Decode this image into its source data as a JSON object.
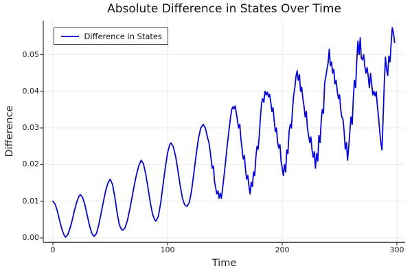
{
  "title": "Absolute Difference in States Over Time",
  "axes": {
    "xlabel": "Time",
    "ylabel": "Difference",
    "x_tick_labels": [
      "0",
      "100",
      "200",
      "300"
    ],
    "y_tick_labels": [
      "0.00",
      "0.01",
      "0.02",
      "0.03",
      "0.04",
      "0.05"
    ]
  },
  "legend": {
    "entries": [
      {
        "label": "Difference in States",
        "color": "#0000ff"
      }
    ],
    "position": "top-left"
  },
  "colors": {
    "line": "#0000ff",
    "grid": "#ebebeb",
    "axis": "#36363a",
    "text": "#1f1f1f",
    "background": "#ffffff"
  },
  "chart_data": {
    "type": "line",
    "title": "Absolute Difference in States Over Time",
    "xlabel": "Time",
    "ylabel": "Difference",
    "x_ticks": [
      0,
      100,
      200,
      300
    ],
    "y_ticks": [
      0,
      0.01,
      0.02,
      0.03,
      0.04,
      0.05
    ],
    "xlim": [
      -8.4,
      307.2
    ],
    "ylim": [
      -0.0012,
      0.0593
    ],
    "grid": true,
    "legend_position": "top-left",
    "series": [
      {
        "name": "Difference in States",
        "color": "#0000ff",
        "points": [
          [
            0,
            0.01
          ],
          [
            2,
            0.0092
          ],
          [
            4,
            0.0072
          ],
          [
            6,
            0.0046
          ],
          [
            8,
            0.0022
          ],
          [
            10,
            0.0006
          ],
          [
            11,
            0.0002
          ],
          [
            13,
            0.0009
          ],
          [
            15,
            0.0026
          ],
          [
            17,
            0.005
          ],
          [
            19,
            0.0077
          ],
          [
            21,
            0.01
          ],
          [
            23,
            0.0115
          ],
          [
            24,
            0.0118
          ],
          [
            26,
            0.011
          ],
          [
            28,
            0.0089
          ],
          [
            30,
            0.0061
          ],
          [
            32,
            0.0033
          ],
          [
            34,
            0.0012
          ],
          [
            36,
            0.0004
          ],
          [
            38,
            0.0012
          ],
          [
            40,
            0.0035
          ],
          [
            42,
            0.0066
          ],
          [
            44,
            0.0098
          ],
          [
            46,
            0.0128
          ],
          [
            48,
            0.015
          ],
          [
            50,
            0.016
          ],
          [
            52,
            0.0146
          ],
          [
            54,
            0.0112
          ],
          [
            56,
            0.0069
          ],
          [
            58,
            0.0035
          ],
          [
            60,
            0.0022
          ],
          [
            61,
            0.0021
          ],
          [
            63,
            0.0028
          ],
          [
            65,
            0.0048
          ],
          [
            67,
            0.0077
          ],
          [
            69,
            0.011
          ],
          [
            71,
            0.0144
          ],
          [
            73,
            0.0174
          ],
          [
            75,
            0.0198
          ],
          [
            77,
            0.0212
          ],
          [
            79,
            0.0202
          ],
          [
            81,
            0.0174
          ],
          [
            83,
            0.0136
          ],
          [
            85,
            0.0096
          ],
          [
            87,
            0.0064
          ],
          [
            89,
            0.0048
          ],
          [
            90,
            0.0046
          ],
          [
            92,
            0.0059
          ],
          [
            94,
            0.0095
          ],
          [
            96,
            0.0143
          ],
          [
            98,
            0.0191
          ],
          [
            100,
            0.0232
          ],
          [
            102,
            0.0255
          ],
          [
            103,
            0.0259
          ],
          [
            105,
            0.0249
          ],
          [
            107,
            0.0223
          ],
          [
            109,
            0.0185
          ],
          [
            111,
            0.0143
          ],
          [
            113,
            0.0108
          ],
          [
            115,
            0.009
          ],
          [
            117,
            0.0086
          ],
          [
            119,
            0.0097
          ],
          [
            121,
            0.013
          ],
          [
            123,
            0.0178
          ],
          [
            125,
            0.0228
          ],
          [
            127,
            0.0272
          ],
          [
            129,
            0.03
          ],
          [
            131,
            0.031
          ],
          [
            133,
            0.03
          ],
          [
            135,
            0.0272
          ],
          [
            136,
            0.0262
          ],
          [
            137,
            0.024
          ],
          [
            139,
            0.019
          ],
          [
            140,
            0.0196
          ],
          [
            141,
            0.0152
          ],
          [
            143,
            0.012
          ],
          [
            144,
            0.0128
          ],
          [
            145,
            0.0108
          ],
          [
            146,
            0.0122
          ],
          [
            147,
            0.0108
          ],
          [
            148,
            0.0135
          ],
          [
            150,
            0.019
          ],
          [
            152,
            0.025
          ],
          [
            154,
            0.0305
          ],
          [
            155,
            0.033
          ],
          [
            156,
            0.035
          ],
          [
            157,
            0.0358
          ],
          [
            158,
            0.0352
          ],
          [
            159,
            0.036
          ],
          [
            160,
            0.034
          ],
          [
            162,
            0.03
          ],
          [
            163,
            0.031
          ],
          [
            164,
            0.027
          ],
          [
            166,
            0.0215
          ],
          [
            167,
            0.0225
          ],
          [
            168,
            0.0185
          ],
          [
            169,
            0.016
          ],
          [
            170,
            0.017
          ],
          [
            171,
            0.014
          ],
          [
            172,
            0.012
          ],
          [
            173,
            0.0152
          ],
          [
            174,
            0.014
          ],
          [
            175,
            0.018
          ],
          [
            176,
            0.017
          ],
          [
            177,
            0.022
          ],
          [
            178,
            0.025
          ],
          [
            179,
            0.0242
          ],
          [
            180,
            0.028
          ],
          [
            181,
            0.033
          ],
          [
            182,
            0.0368
          ],
          [
            183,
            0.038
          ],
          [
            184,
            0.037
          ],
          [
            185,
            0.04
          ],
          [
            186,
            0.039
          ],
          [
            187,
            0.0398
          ],
          [
            188,
            0.0385
          ],
          [
            189,
            0.0392
          ],
          [
            190,
            0.037
          ],
          [
            191,
            0.0345
          ],
          [
            192,
            0.0355
          ],
          [
            193,
            0.032
          ],
          [
            194,
            0.029
          ],
          [
            195,
            0.03
          ],
          [
            196,
            0.026
          ],
          [
            197,
            0.0245
          ],
          [
            198,
            0.0255
          ],
          [
            199,
            0.021
          ],
          [
            200,
            0.019
          ],
          [
            201,
            0.017
          ],
          [
            202,
            0.02
          ],
          [
            203,
            0.018
          ],
          [
            204,
            0.024
          ],
          [
            205,
            0.023
          ],
          [
            206,
            0.029
          ],
          [
            207,
            0.031
          ],
          [
            208,
            0.03
          ],
          [
            209,
            0.035
          ],
          [
            210,
            0.039
          ],
          [
            211,
            0.041
          ],
          [
            212,
            0.044
          ],
          [
            213,
            0.0456
          ],
          [
            214,
            0.043
          ],
          [
            215,
            0.0445
          ],
          [
            216,
            0.04
          ],
          [
            217,
            0.0411
          ],
          [
            218,
            0.038
          ],
          [
            219,
            0.036
          ],
          [
            220,
            0.033
          ],
          [
            221,
            0.0345
          ],
          [
            222,
            0.03
          ],
          [
            223,
            0.028
          ],
          [
            224,
            0.026
          ],
          [
            225,
            0.0275
          ],
          [
            226,
            0.024
          ],
          [
            227,
            0.022
          ],
          [
            228,
            0.0235
          ],
          [
            229,
            0.019
          ],
          [
            230,
            0.023
          ],
          [
            231,
            0.021
          ],
          [
            232,
            0.028
          ],
          [
            233,
            0.026
          ],
          [
            234,
            0.032
          ],
          [
            235,
            0.035
          ],
          [
            236,
            0.034
          ],
          [
            237,
            0.0424
          ],
          [
            238,
            0.044
          ],
          [
            239,
            0.046
          ],
          [
            240,
            0.0477
          ],
          [
            241,
            0.0515
          ],
          [
            242,
            0.047
          ],
          [
            243,
            0.048
          ],
          [
            244,
            0.045
          ],
          [
            245,
            0.046
          ],
          [
            246,
            0.042
          ],
          [
            247,
            0.043
          ],
          [
            248,
            0.04
          ],
          [
            249,
            0.038
          ],
          [
            250,
            0.039
          ],
          [
            251,
            0.035
          ],
          [
            252,
            0.033
          ],
          [
            253,
            0.0324
          ],
          [
            254,
            0.029
          ],
          [
            255,
            0.0242
          ],
          [
            256,
            0.026
          ],
          [
            257,
            0.0212
          ],
          [
            258,
            0.025
          ],
          [
            259,
            0.029
          ],
          [
            260,
            0.033
          ],
          [
            261,
            0.031
          ],
          [
            262,
            0.038
          ],
          [
            263,
            0.043
          ],
          [
            264,
            0.041
          ],
          [
            265,
            0.048
          ],
          [
            266,
            0.0537
          ],
          [
            267,
            0.05
          ],
          [
            268,
            0.0546
          ],
          [
            269,
            0.049
          ],
          [
            270,
            0.0486
          ],
          [
            271,
            0.05
          ],
          [
            272,
            0.047
          ],
          [
            273,
            0.045
          ],
          [
            274,
            0.0465
          ],
          [
            275,
            0.044
          ],
          [
            276,
            0.041
          ],
          [
            277,
            0.0449
          ],
          [
            278,
            0.042
          ],
          [
            279,
            0.039
          ],
          [
            280,
            0.04
          ],
          [
            281,
            0.0387
          ],
          [
            282,
            0.0399
          ],
          [
            283,
            0.036
          ],
          [
            284,
            0.033
          ],
          [
            285,
            0.029
          ],
          [
            286,
            0.026
          ],
          [
            287,
            0.024
          ],
          [
            288,
            0.033
          ],
          [
            289,
            0.042
          ],
          [
            290,
            0.0493
          ],
          [
            291,
            0.046
          ],
          [
            292,
            0.0443
          ],
          [
            293,
            0.0496
          ],
          [
            294,
            0.048
          ],
          [
            295,
            0.053
          ],
          [
            296,
            0.0574
          ],
          [
            297,
            0.056
          ],
          [
            298,
            0.0533
          ]
        ]
      }
    ]
  }
}
